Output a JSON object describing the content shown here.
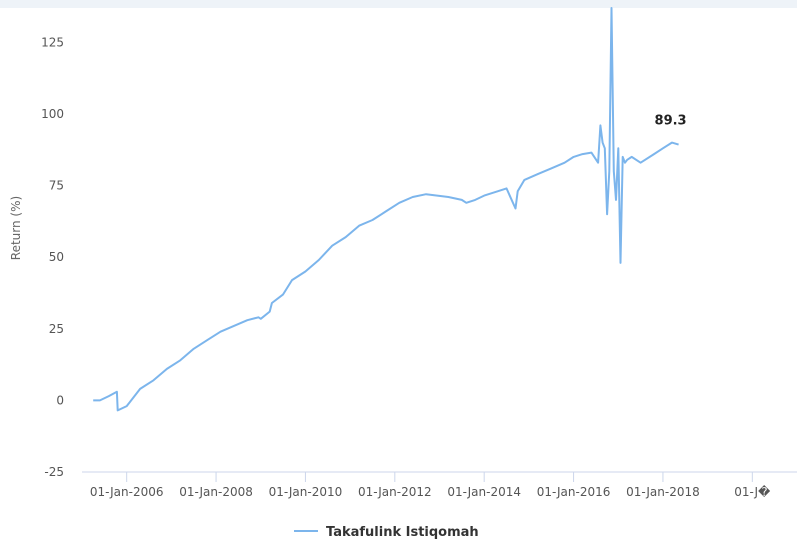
{
  "chart_data": {
    "type": "line",
    "ylabel": "Return (%)",
    "xlabel": "",
    "ylim": [
      -25,
      137
    ],
    "y_ticks": [
      -25,
      0,
      25,
      50,
      75,
      100,
      125
    ],
    "x_ticks": [
      "01-Jan-2006",
      "01-Jan-2008",
      "01-Jan-2010",
      "01-Jan-2012",
      "01-Jan-2014",
      "01-Jan-2016",
      "01-Jan-2018",
      "01-J�"
    ],
    "x_tick_years": [
      2006,
      2008,
      2010,
      2012,
      2014,
      2016,
      2018,
      2020
    ],
    "xlim": [
      2005.0,
      2021.0
    ],
    "grid": false,
    "legend_position": "bottom-center",
    "last_value_label": "89.3",
    "series": [
      {
        "name": "Takafulink Istiqomah",
        "color": "#7cb5ec",
        "x": [
          2005.25,
          2005.4,
          2005.6,
          2005.78,
          2005.8,
          2006.0,
          2006.3,
          2006.6,
          2006.9,
          2007.2,
          2007.5,
          2007.8,
          2008.1,
          2008.4,
          2008.7,
          2008.95,
          2009.0,
          2009.2,
          2009.25,
          2009.5,
          2009.7,
          2010.0,
          2010.3,
          2010.6,
          2010.9,
          2011.2,
          2011.5,
          2011.8,
          2012.1,
          2012.4,
          2012.7,
          2012.95,
          2013.2,
          2013.5,
          2013.6,
          2013.8,
          2014.0,
          2014.3,
          2014.5,
          2014.7,
          2014.75,
          2014.9,
          2015.2,
          2015.5,
          2015.8,
          2016.0,
          2016.2,
          2016.4,
          2016.55,
          2016.6,
          2016.65,
          2016.7,
          2016.75,
          2016.8,
          2016.85,
          2016.9,
          2016.95,
          2017.0,
          2017.05,
          2017.1,
          2017.15,
          2017.2,
          2017.3,
          2017.5,
          2017.8,
          2018.0,
          2018.2,
          2018.35
        ],
        "values": [
          0,
          0,
          1.5,
          3,
          -3.5,
          -2,
          4,
          7,
          11,
          14,
          18,
          21,
          24,
          26,
          28,
          29,
          28.5,
          31,
          34,
          37,
          42,
          45,
          49,
          54,
          57,
          61,
          63,
          66,
          69,
          71,
          72,
          71.5,
          71,
          70,
          69,
          70,
          71.5,
          73,
          74,
          67,
          73,
          77,
          79,
          81,
          83,
          85,
          86,
          86.5,
          83,
          96,
          90,
          88,
          65,
          80,
          137,
          80,
          70,
          88,
          48,
          85,
          83,
          84,
          85,
          83,
          86,
          88,
          90,
          89.3
        ]
      }
    ]
  }
}
